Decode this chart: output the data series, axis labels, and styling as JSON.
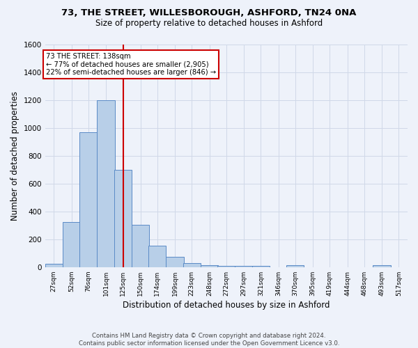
{
  "title1": "73, THE STREET, WILLESBOROUGH, ASHFORD, TN24 0NA",
  "title2": "Size of property relative to detached houses in Ashford",
  "xlabel": "Distribution of detached houses by size in Ashford",
  "ylabel": "Number of detached properties",
  "footer1": "Contains HM Land Registry data © Crown copyright and database right 2024.",
  "footer2": "Contains public sector information licensed under the Open Government Licence v3.0.",
  "property_label": "73 THE STREET: 138sqm",
  "annotation_line1": "← 77% of detached houses are smaller (2,905)",
  "annotation_line2": "22% of semi-detached houses are larger (846) →",
  "red_line_x": 138,
  "bar_edges": [
    27,
    52,
    76,
    101,
    125,
    150,
    174,
    199,
    223,
    248,
    272,
    297,
    321,
    346,
    370,
    395,
    419,
    444,
    468,
    493,
    517
  ],
  "bar_heights": [
    25,
    325,
    970,
    1200,
    700,
    305,
    155,
    75,
    30,
    15,
    10,
    10,
    10,
    0,
    15,
    0,
    0,
    0,
    0,
    15,
    0
  ],
  "bar_color": "#b8cfe8",
  "bar_edge_color": "#5a8ac6",
  "grid_color": "#d0d8e8",
  "background_color": "#eef2fa",
  "red_line_color": "#cc0000",
  "annotation_box_color": "#ffffff",
  "annotation_box_edge": "#cc0000",
  "ylim": [
    0,
    1600
  ],
  "yticks": [
    0,
    200,
    400,
    600,
    800,
    1000,
    1200,
    1400,
    1600
  ]
}
